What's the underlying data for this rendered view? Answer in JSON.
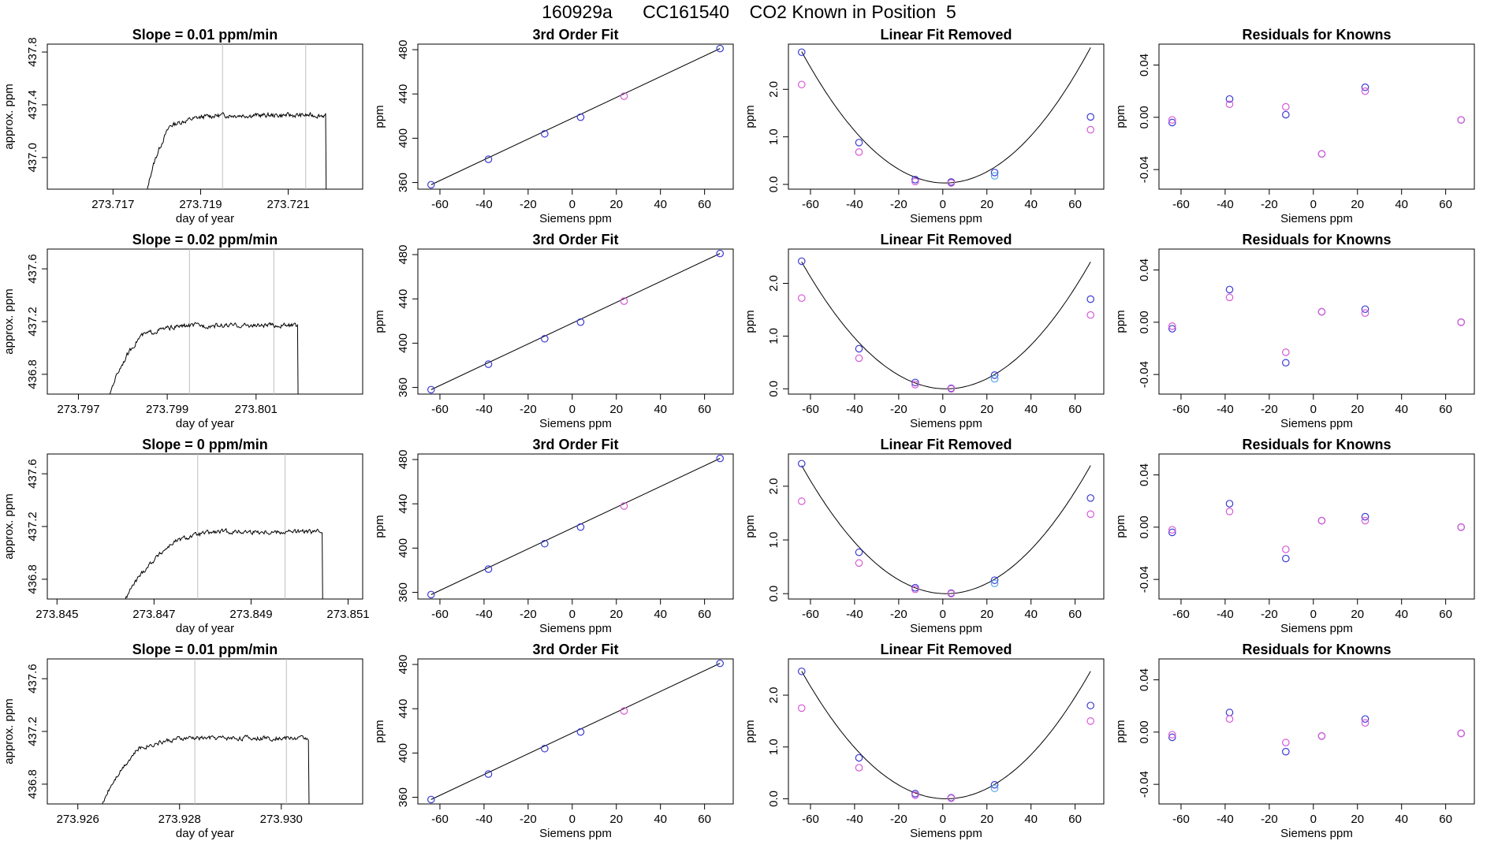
{
  "figure": {
    "title": "160929a      CC161540    CO2 Known in Position  5"
  },
  "colors": {
    "frame": "#000000",
    "vline": "#bfbfbf",
    "blue": "#3b3bd6",
    "magenta": "#d65ad6",
    "lightblue": "#5aa8e6",
    "trace": "#000000",
    "red_marker": "#ff4040"
  },
  "chart_data": [
    {
      "type": "line",
      "row": 1,
      "col": 1,
      "title": "Slope =  0.01  ppm/min",
      "xlabel": "day of year",
      "ylabel": "approx. ppm",
      "xlim": [
        273.7155,
        273.7227
      ],
      "ylim": [
        436.76,
        437.86
      ],
      "xticks": [
        273.717,
        273.719,
        273.721
      ],
      "yticks": [
        437.0,
        437.4,
        437.8
      ],
      "vlines": [
        273.7195,
        273.7214
      ],
      "trace": {
        "x_start": 273.71775,
        "x_end": 273.72187,
        "rise_end": 273.7183,
        "plateau": 437.32
      }
    },
    {
      "type": "line",
      "title": "3rd Order Fit",
      "xlabel": "Siemens ppm",
      "ylabel": "ppm",
      "xlim": [
        -70,
        73
      ],
      "ylim": [
        354,
        485
      ],
      "xticks": [
        -60,
        -40,
        -20,
        0,
        20,
        40,
        60
      ],
      "yticks": [
        360,
        400,
        440,
        480
      ],
      "line": {
        "x": [
          -64,
          67
        ],
        "y": [
          358,
          481
        ]
      },
      "points": [
        {
          "x": -64,
          "y": 358,
          "color": "blue"
        },
        {
          "x": -38,
          "y": 381,
          "color": "blue"
        },
        {
          "x": -12.5,
          "y": 404,
          "color": "blue"
        },
        {
          "x": 3.8,
          "y": 419,
          "color": "blue"
        },
        {
          "x": 23.5,
          "y": 438,
          "color": "magenta"
        },
        {
          "x": 67,
          "y": 481,
          "color": "blue"
        }
      ]
    },
    {
      "type": "scatter",
      "title": "Linear Fit Removed",
      "xlabel": "Siemens ppm",
      "ylabel": "ppm",
      "xlim": [
        -70,
        73
      ],
      "ylim": [
        -0.1,
        2.95
      ],
      "xticks": [
        -60,
        -40,
        -20,
        0,
        20,
        40,
        60
      ],
      "yticks": [
        0.0,
        1.0,
        2.0
      ],
      "curve": {
        "a": 0.000654,
        "x0": 1.0,
        "c": 0.03
      },
      "points": [
        {
          "x": -64,
          "y": 2.78,
          "color": "blue"
        },
        {
          "x": -64,
          "y": 2.1,
          "color": "magenta"
        },
        {
          "x": -38,
          "y": 0.88,
          "color": "blue"
        },
        {
          "x": -38,
          "y": 0.68,
          "color": "magenta"
        },
        {
          "x": -12.5,
          "y": 0.1,
          "color": "blue"
        },
        {
          "x": -12.5,
          "y": 0.06,
          "color": "magenta"
        },
        {
          "x": 3.8,
          "y": 0.05,
          "color": "blue"
        },
        {
          "x": 3.8,
          "y": 0.03,
          "color": "magenta"
        },
        {
          "x": 23.5,
          "y": 0.25,
          "color": "blue"
        },
        {
          "x": 23.5,
          "y": 0.18,
          "color": "lightblue"
        },
        {
          "x": 67,
          "y": 1.42,
          "color": "blue"
        },
        {
          "x": 67,
          "y": 1.15,
          "color": "magenta"
        }
      ]
    },
    {
      "type": "scatter",
      "title": "Residuals for Knowns",
      "xlabel": "Siemens ppm",
      "ylabel": "ppm",
      "xlim": [
        -70,
        73
      ],
      "ylim": [
        -0.055,
        0.056
      ],
      "xticks": [
        -60,
        -40,
        -20,
        0,
        20,
        40,
        60
      ],
      "yticks": [
        -0.04,
        0.0,
        0.04
      ],
      "points": [
        {
          "x": -64,
          "y": -0.004,
          "color": "blue"
        },
        {
          "x": -64,
          "y": -0.002,
          "color": "magenta"
        },
        {
          "x": -38,
          "y": 0.014,
          "color": "blue"
        },
        {
          "x": -38,
          "y": 0.01,
          "color": "magenta"
        },
        {
          "x": -12.5,
          "y": 0.002,
          "color": "blue"
        },
        {
          "x": -12.5,
          "y": 0.008,
          "color": "magenta"
        },
        {
          "x": 3.8,
          "y": -0.028,
          "color": "blue"
        },
        {
          "x": 3.8,
          "y": -0.028,
          "color": "magenta"
        },
        {
          "x": 23.5,
          "y": 0.023,
          "color": "blue"
        },
        {
          "x": 23.5,
          "y": 0.02,
          "color": "magenta"
        },
        {
          "x": 67,
          "y": -0.002,
          "color": "blue"
        },
        {
          "x": 67,
          "y": -0.002,
          "color": "magenta"
        }
      ]
    },
    {
      "type": "line",
      "row": 2,
      "col": 1,
      "title": "Slope =  0.02  ppm/min",
      "xlabel": "day of year",
      "ylabel": "approx. ppm",
      "xlim": [
        273.7963,
        273.8034
      ],
      "ylim": [
        436.65,
        437.75
      ],
      "xticks": [
        273.797,
        273.799,
        273.801
      ],
      "yticks": [
        436.8,
        437.2,
        437.6
      ],
      "vlines": [
        273.7995,
        273.8014
      ],
      "trace": {
        "x_start": 273.79765,
        "x_end": 273.80195,
        "rise_end": 273.7984,
        "plateau": 437.17
      }
    },
    {
      "type": "line",
      "title": "3rd Order Fit",
      "xlabel": "Siemens ppm",
      "ylabel": "ppm",
      "xlim": [
        -70,
        73
      ],
      "ylim": [
        354,
        485
      ],
      "xticks": [
        -60,
        -40,
        -20,
        0,
        20,
        40,
        60
      ],
      "yticks": [
        360,
        400,
        440,
        480
      ],
      "line": {
        "x": [
          -64,
          67
        ],
        "y": [
          358,
          481
        ]
      },
      "points": [
        {
          "x": -64,
          "y": 358,
          "color": "blue"
        },
        {
          "x": -38,
          "y": 381,
          "color": "blue"
        },
        {
          "x": -12.5,
          "y": 404,
          "color": "blue"
        },
        {
          "x": 3.8,
          "y": 419,
          "color": "blue"
        },
        {
          "x": 23.5,
          "y": 438,
          "color": "magenta"
        },
        {
          "x": 67,
          "y": 481,
          "color": "blue"
        }
      ]
    },
    {
      "type": "scatter",
      "title": "Linear Fit Removed",
      "xlabel": "Siemens ppm",
      "ylabel": "ppm",
      "xlim": [
        -70,
        73
      ],
      "ylim": [
        -0.1,
        2.65
      ],
      "xticks": [
        -60,
        -40,
        -20,
        0,
        20,
        40,
        60
      ],
      "yticks": [
        0.0,
        1.0,
        2.0
      ],
      "curve": {
        "a": 0.000561,
        "x0": 1.5,
        "c": 0.0
      },
      "points": [
        {
          "x": -64,
          "y": 2.42,
          "color": "blue"
        },
        {
          "x": -64,
          "y": 1.72,
          "color": "magenta"
        },
        {
          "x": -38,
          "y": 0.76,
          "color": "blue"
        },
        {
          "x": -38,
          "y": 0.58,
          "color": "magenta"
        },
        {
          "x": -12.5,
          "y": 0.12,
          "color": "blue"
        },
        {
          "x": -12.5,
          "y": 0.08,
          "color": "magenta"
        },
        {
          "x": 3.8,
          "y": 0.01,
          "color": "blue"
        },
        {
          "x": 3.8,
          "y": 0.0,
          "color": "magenta"
        },
        {
          "x": 23.5,
          "y": 0.26,
          "color": "blue"
        },
        {
          "x": 23.5,
          "y": 0.19,
          "color": "lightblue"
        },
        {
          "x": 67,
          "y": 1.7,
          "color": "blue"
        },
        {
          "x": 67,
          "y": 1.4,
          "color": "magenta"
        }
      ]
    },
    {
      "type": "scatter",
      "title": "Residuals for Knowns",
      "xlabel": "Siemens ppm",
      "ylabel": "ppm",
      "xlim": [
        -70,
        73
      ],
      "ylim": [
        -0.055,
        0.056
      ],
      "xticks": [
        -60,
        -40,
        -20,
        0,
        20,
        40,
        60
      ],
      "yticks": [
        -0.04,
        0.0,
        0.04
      ],
      "points": [
        {
          "x": -64,
          "y": -0.005,
          "color": "blue"
        },
        {
          "x": -64,
          "y": -0.003,
          "color": "magenta"
        },
        {
          "x": -38,
          "y": 0.025,
          "color": "blue"
        },
        {
          "x": -38,
          "y": 0.019,
          "color": "magenta"
        },
        {
          "x": -12.5,
          "y": -0.031,
          "color": "blue"
        },
        {
          "x": -12.5,
          "y": -0.023,
          "color": "magenta"
        },
        {
          "x": 3.8,
          "y": 0.008,
          "color": "blue"
        },
        {
          "x": 3.8,
          "y": 0.008,
          "color": "magenta"
        },
        {
          "x": 23.5,
          "y": 0.01,
          "color": "blue"
        },
        {
          "x": 23.5,
          "y": 0.007,
          "color": "magenta"
        },
        {
          "x": 67,
          "y": 0.0,
          "color": "blue"
        },
        {
          "x": 67,
          "y": 0.0,
          "color": "magenta"
        }
      ]
    },
    {
      "type": "line",
      "row": 3,
      "col": 1,
      "title": "Slope =  0  ppm/min",
      "xlabel": "day of year",
      "ylabel": "approx. ppm",
      "xlim": [
        273.8448,
        273.8513
      ],
      "ylim": [
        436.65,
        437.75
      ],
      "xticks": [
        273.845,
        273.847,
        273.849,
        273.851
      ],
      "yticks": [
        436.8,
        437.2,
        437.6
      ],
      "vlines": [
        273.8479,
        273.8497
      ],
      "trace": {
        "x_start": 273.84633,
        "x_end": 273.85048,
        "rise_end": 273.8474,
        "plateau": 437.16
      }
    },
    {
      "type": "line",
      "title": "3rd Order Fit",
      "xlabel": "Siemens ppm",
      "ylabel": "ppm",
      "xlim": [
        -70,
        73
      ],
      "ylim": [
        354,
        485
      ],
      "xticks": [
        -60,
        -40,
        -20,
        0,
        20,
        40,
        60
      ],
      "yticks": [
        360,
        400,
        440,
        480
      ],
      "line": {
        "x": [
          -64,
          67
        ],
        "y": [
          358,
          481
        ]
      },
      "points": [
        {
          "x": -64,
          "y": 358,
          "color": "blue"
        },
        {
          "x": -38,
          "y": 381,
          "color": "blue"
        },
        {
          "x": -12.5,
          "y": 404,
          "color": "blue"
        },
        {
          "x": 3.8,
          "y": 419,
          "color": "blue"
        },
        {
          "x": 23.5,
          "y": 438,
          "color": "magenta"
        },
        {
          "x": 67,
          "y": 481,
          "color": "blue"
        }
      ]
    },
    {
      "type": "scatter",
      "title": "Linear Fit Removed",
      "xlabel": "Siemens ppm",
      "ylabel": "ppm",
      "xlim": [
        -70,
        73
      ],
      "ylim": [
        -0.1,
        2.6
      ],
      "xticks": [
        -60,
        -40,
        -20,
        0,
        20,
        40,
        60
      ],
      "yticks": [
        0.0,
        1.0,
        2.0
      ],
      "curve": {
        "a": 0.000556,
        "x0": 1.5,
        "c": 0.0
      },
      "points": [
        {
          "x": -64,
          "y": 2.42,
          "color": "blue"
        },
        {
          "x": -64,
          "y": 1.72,
          "color": "magenta"
        },
        {
          "x": -38,
          "y": 0.77,
          "color": "blue"
        },
        {
          "x": -38,
          "y": 0.57,
          "color": "magenta"
        },
        {
          "x": -12.5,
          "y": 0.11,
          "color": "blue"
        },
        {
          "x": -12.5,
          "y": 0.08,
          "color": "magenta"
        },
        {
          "x": 3.8,
          "y": 0.01,
          "color": "blue"
        },
        {
          "x": 3.8,
          "y": 0.0,
          "color": "magenta"
        },
        {
          "x": 23.5,
          "y": 0.25,
          "color": "blue"
        },
        {
          "x": 23.5,
          "y": 0.19,
          "color": "lightblue"
        },
        {
          "x": 67,
          "y": 1.78,
          "color": "blue"
        },
        {
          "x": 67,
          "y": 1.48,
          "color": "magenta"
        }
      ]
    },
    {
      "type": "scatter",
      "title": "Residuals for Knowns",
      "xlabel": "Siemens ppm",
      "ylabel": "ppm",
      "xlim": [
        -70,
        73
      ],
      "ylim": [
        -0.055,
        0.056
      ],
      "xticks": [
        -60,
        -40,
        -20,
        0,
        20,
        40,
        60
      ],
      "yticks": [
        -0.04,
        0.0,
        0.04
      ],
      "points": [
        {
          "x": -64,
          "y": -0.004,
          "color": "blue"
        },
        {
          "x": -64,
          "y": -0.002,
          "color": "magenta"
        },
        {
          "x": -38,
          "y": 0.018,
          "color": "blue"
        },
        {
          "x": -38,
          "y": 0.012,
          "color": "magenta"
        },
        {
          "x": -12.5,
          "y": -0.024,
          "color": "blue"
        },
        {
          "x": -12.5,
          "y": -0.017,
          "color": "magenta"
        },
        {
          "x": 3.8,
          "y": 0.005,
          "color": "blue"
        },
        {
          "x": 3.8,
          "y": 0.005,
          "color": "magenta"
        },
        {
          "x": 23.5,
          "y": 0.008,
          "color": "blue"
        },
        {
          "x": 23.5,
          "y": 0.005,
          "color": "magenta"
        },
        {
          "x": 67,
          "y": 0.0,
          "color": "blue"
        },
        {
          "x": 67,
          "y": 0.0,
          "color": "magenta"
        }
      ]
    },
    {
      "type": "line",
      "row": 4,
      "col": 1,
      "title": "Slope =  0.01  ppm/min",
      "xlabel": "day of year",
      "ylabel": "approx. ppm",
      "xlim": [
        273.9254,
        273.9316
      ],
      "ylim": [
        436.65,
        437.75
      ],
      "xticks": [
        273.926,
        273.928,
        273.93
      ],
      "yticks": [
        436.8,
        437.2,
        437.6
      ],
      "vlines": [
        273.9283,
        273.9301
      ],
      "trace": {
        "x_start": 273.92642,
        "x_end": 273.93055,
        "rise_end": 273.9272,
        "plateau": 437.15
      }
    },
    {
      "type": "line",
      "title": "3rd Order Fit",
      "xlabel": "Siemens ppm",
      "ylabel": "ppm",
      "xlim": [
        -70,
        73
      ],
      "ylim": [
        354,
        485
      ],
      "xticks": [
        -60,
        -40,
        -20,
        0,
        20,
        40,
        60
      ],
      "yticks": [
        360,
        400,
        440,
        480
      ],
      "line": {
        "x": [
          -64,
          67
        ],
        "y": [
          358,
          481
        ]
      },
      "points": [
        {
          "x": -64,
          "y": 358,
          "color": "blue"
        },
        {
          "x": -38,
          "y": 381,
          "color": "blue"
        },
        {
          "x": -12.5,
          "y": 404,
          "color": "blue"
        },
        {
          "x": 3.8,
          "y": 419,
          "color": "blue"
        },
        {
          "x": 23.5,
          "y": 438,
          "color": "magenta"
        },
        {
          "x": 67,
          "y": 481,
          "color": "blue"
        }
      ]
    },
    {
      "type": "scatter",
      "title": "Linear Fit Removed",
      "xlabel": "Siemens ppm",
      "ylabel": "ppm",
      "xlim": [
        -70,
        73
      ],
      "ylim": [
        -0.1,
        2.7
      ],
      "xticks": [
        -60,
        -40,
        -20,
        0,
        20,
        40,
        60
      ],
      "yticks": [
        0.0,
        1.0,
        2.0
      ],
      "curve": {
        "a": 0.000574,
        "x0": 1.5,
        "c": 0.0
      },
      "points": [
        {
          "x": -64,
          "y": 2.46,
          "color": "blue"
        },
        {
          "x": -64,
          "y": 1.75,
          "color": "magenta"
        },
        {
          "x": -38,
          "y": 0.79,
          "color": "blue"
        },
        {
          "x": -38,
          "y": 0.6,
          "color": "magenta"
        },
        {
          "x": -12.5,
          "y": 0.1,
          "color": "blue"
        },
        {
          "x": -12.5,
          "y": 0.07,
          "color": "magenta"
        },
        {
          "x": 3.8,
          "y": 0.02,
          "color": "blue"
        },
        {
          "x": 3.8,
          "y": 0.01,
          "color": "magenta"
        },
        {
          "x": 23.5,
          "y": 0.27,
          "color": "blue"
        },
        {
          "x": 23.5,
          "y": 0.2,
          "color": "lightblue"
        },
        {
          "x": 67,
          "y": 1.8,
          "color": "blue"
        },
        {
          "x": 67,
          "y": 1.5,
          "color": "magenta"
        }
      ]
    },
    {
      "type": "scatter",
      "title": "Residuals for Knowns",
      "xlabel": "Siemens ppm",
      "ylabel": "ppm",
      "xlim": [
        -70,
        73
      ],
      "ylim": [
        -0.055,
        0.056
      ],
      "xticks": [
        -60,
        -40,
        -20,
        0,
        20,
        40,
        60
      ],
      "yticks": [
        -0.04,
        0.0,
        0.04
      ],
      "points": [
        {
          "x": -64,
          "y": -0.004,
          "color": "blue"
        },
        {
          "x": -64,
          "y": -0.002,
          "color": "magenta"
        },
        {
          "x": -38,
          "y": 0.015,
          "color": "blue"
        },
        {
          "x": -38,
          "y": 0.01,
          "color": "magenta"
        },
        {
          "x": -12.5,
          "y": -0.015,
          "color": "blue"
        },
        {
          "x": -12.5,
          "y": -0.008,
          "color": "magenta"
        },
        {
          "x": 3.8,
          "y": -0.003,
          "color": "blue"
        },
        {
          "x": 3.8,
          "y": -0.003,
          "color": "magenta"
        },
        {
          "x": 23.5,
          "y": 0.01,
          "color": "blue"
        },
        {
          "x": 23.5,
          "y": 0.007,
          "color": "magenta"
        },
        {
          "x": 67,
          "y": -0.001,
          "color": "blue"
        },
        {
          "x": 67,
          "y": -0.001,
          "color": "magenta"
        }
      ]
    }
  ]
}
